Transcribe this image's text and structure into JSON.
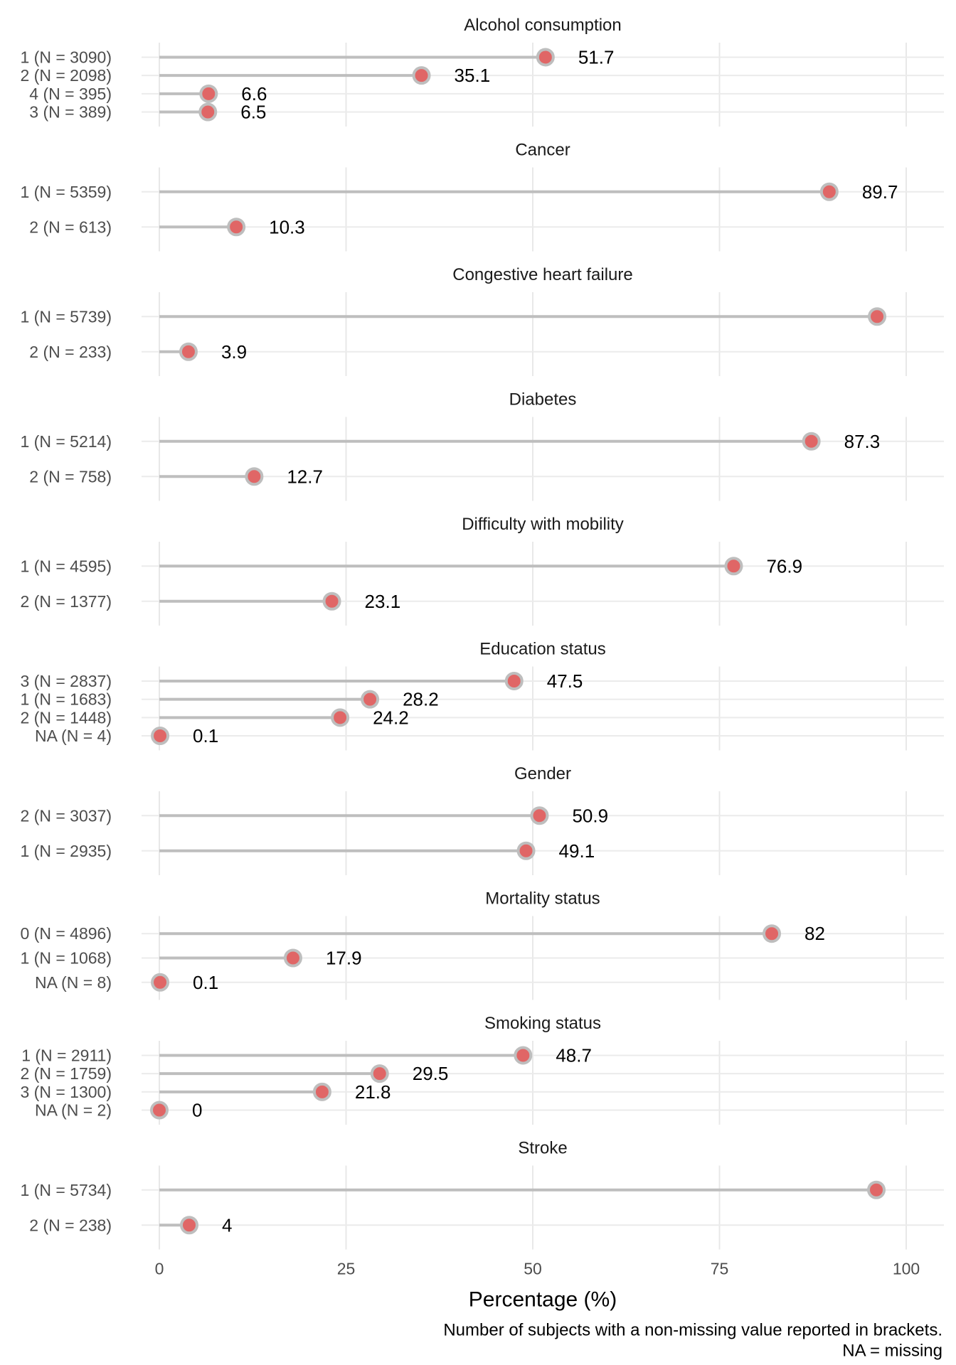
{
  "chart_data": {
    "type": "lollipop",
    "xlabel": "Percentage (%)",
    "xlim": [
      0,
      100
    ],
    "xticks": [
      0,
      25,
      50,
      75,
      100
    ],
    "grid": true,
    "caption": [
      "Number of subjects with a non-missing value reported in brackets.",
      "NA = missing"
    ],
    "colors": {
      "point_fill": "#e06666",
      "point_outline": "#bebebe",
      "segment": "#bebebe",
      "grid": "#ebebeb"
    },
    "facets": [
      {
        "title": "Alcohol consumption",
        "rows": [
          {
            "label": "1 (N = 3090)",
            "value": 51.7,
            "value_label": "51.7"
          },
          {
            "label": "2 (N = 2098)",
            "value": 35.1,
            "value_label": "35.1"
          },
          {
            "label": "4 (N = 395)",
            "value": 6.6,
            "value_label": "6.6"
          },
          {
            "label": "3 (N = 389)",
            "value": 6.5,
            "value_label": "6.5"
          }
        ]
      },
      {
        "title": "Cancer",
        "rows": [
          {
            "label": "1 (N = 5359)",
            "value": 89.7,
            "value_label": "89.7"
          },
          {
            "label": "2 (N = 613)",
            "value": 10.3,
            "value_label": "10.3"
          }
        ]
      },
      {
        "title": "Congestive heart failure",
        "rows": [
          {
            "label": "1 (N = 5739)",
            "value": 96.1,
            "value_label": ""
          },
          {
            "label": "2 (N = 233)",
            "value": 3.9,
            "value_label": "3.9"
          }
        ]
      },
      {
        "title": "Diabetes",
        "rows": [
          {
            "label": "1 (N = 5214)",
            "value": 87.3,
            "value_label": "87.3"
          },
          {
            "label": "2 (N = 758)",
            "value": 12.7,
            "value_label": "12.7"
          }
        ]
      },
      {
        "title": "Difficulty with mobility",
        "rows": [
          {
            "label": "1 (N = 4595)",
            "value": 76.9,
            "value_label": "76.9"
          },
          {
            "label": "2 (N = 1377)",
            "value": 23.1,
            "value_label": "23.1"
          }
        ]
      },
      {
        "title": "Education status",
        "rows": [
          {
            "label": "3 (N = 2837)",
            "value": 47.5,
            "value_label": "47.5"
          },
          {
            "label": "1 (N = 1683)",
            "value": 28.2,
            "value_label": "28.2"
          },
          {
            "label": "2 (N = 1448)",
            "value": 24.2,
            "value_label": "24.2"
          },
          {
            "label": "NA (N = 4)",
            "value": 0.1,
            "value_label": "0.1"
          }
        ]
      },
      {
        "title": "Gender",
        "rows": [
          {
            "label": "2 (N = 3037)",
            "value": 50.9,
            "value_label": "50.9"
          },
          {
            "label": "1 (N = 2935)",
            "value": 49.1,
            "value_label": "49.1"
          }
        ]
      },
      {
        "title": "Mortality status",
        "rows": [
          {
            "label": "0 (N = 4896)",
            "value": 82,
            "value_label": "82"
          },
          {
            "label": "1 (N = 1068)",
            "value": 17.9,
            "value_label": "17.9"
          },
          {
            "label": "NA (N = 8)",
            "value": 0.1,
            "value_label": "0.1"
          }
        ]
      },
      {
        "title": "Smoking status",
        "rows": [
          {
            "label": "1 (N = 2911)",
            "value": 48.7,
            "value_label": "48.7"
          },
          {
            "label": "2 (N = 1759)",
            "value": 29.5,
            "value_label": "29.5"
          },
          {
            "label": "3 (N = 1300)",
            "value": 21.8,
            "value_label": "21.8"
          },
          {
            "label": "NA (N = 2)",
            "value": 0,
            "value_label": "0"
          }
        ]
      },
      {
        "title": "Stroke",
        "rows": [
          {
            "label": "1 (N = 5734)",
            "value": 96,
            "value_label": ""
          },
          {
            "label": "2 (N = 238)",
            "value": 4,
            "value_label": "4"
          }
        ]
      }
    ]
  }
}
